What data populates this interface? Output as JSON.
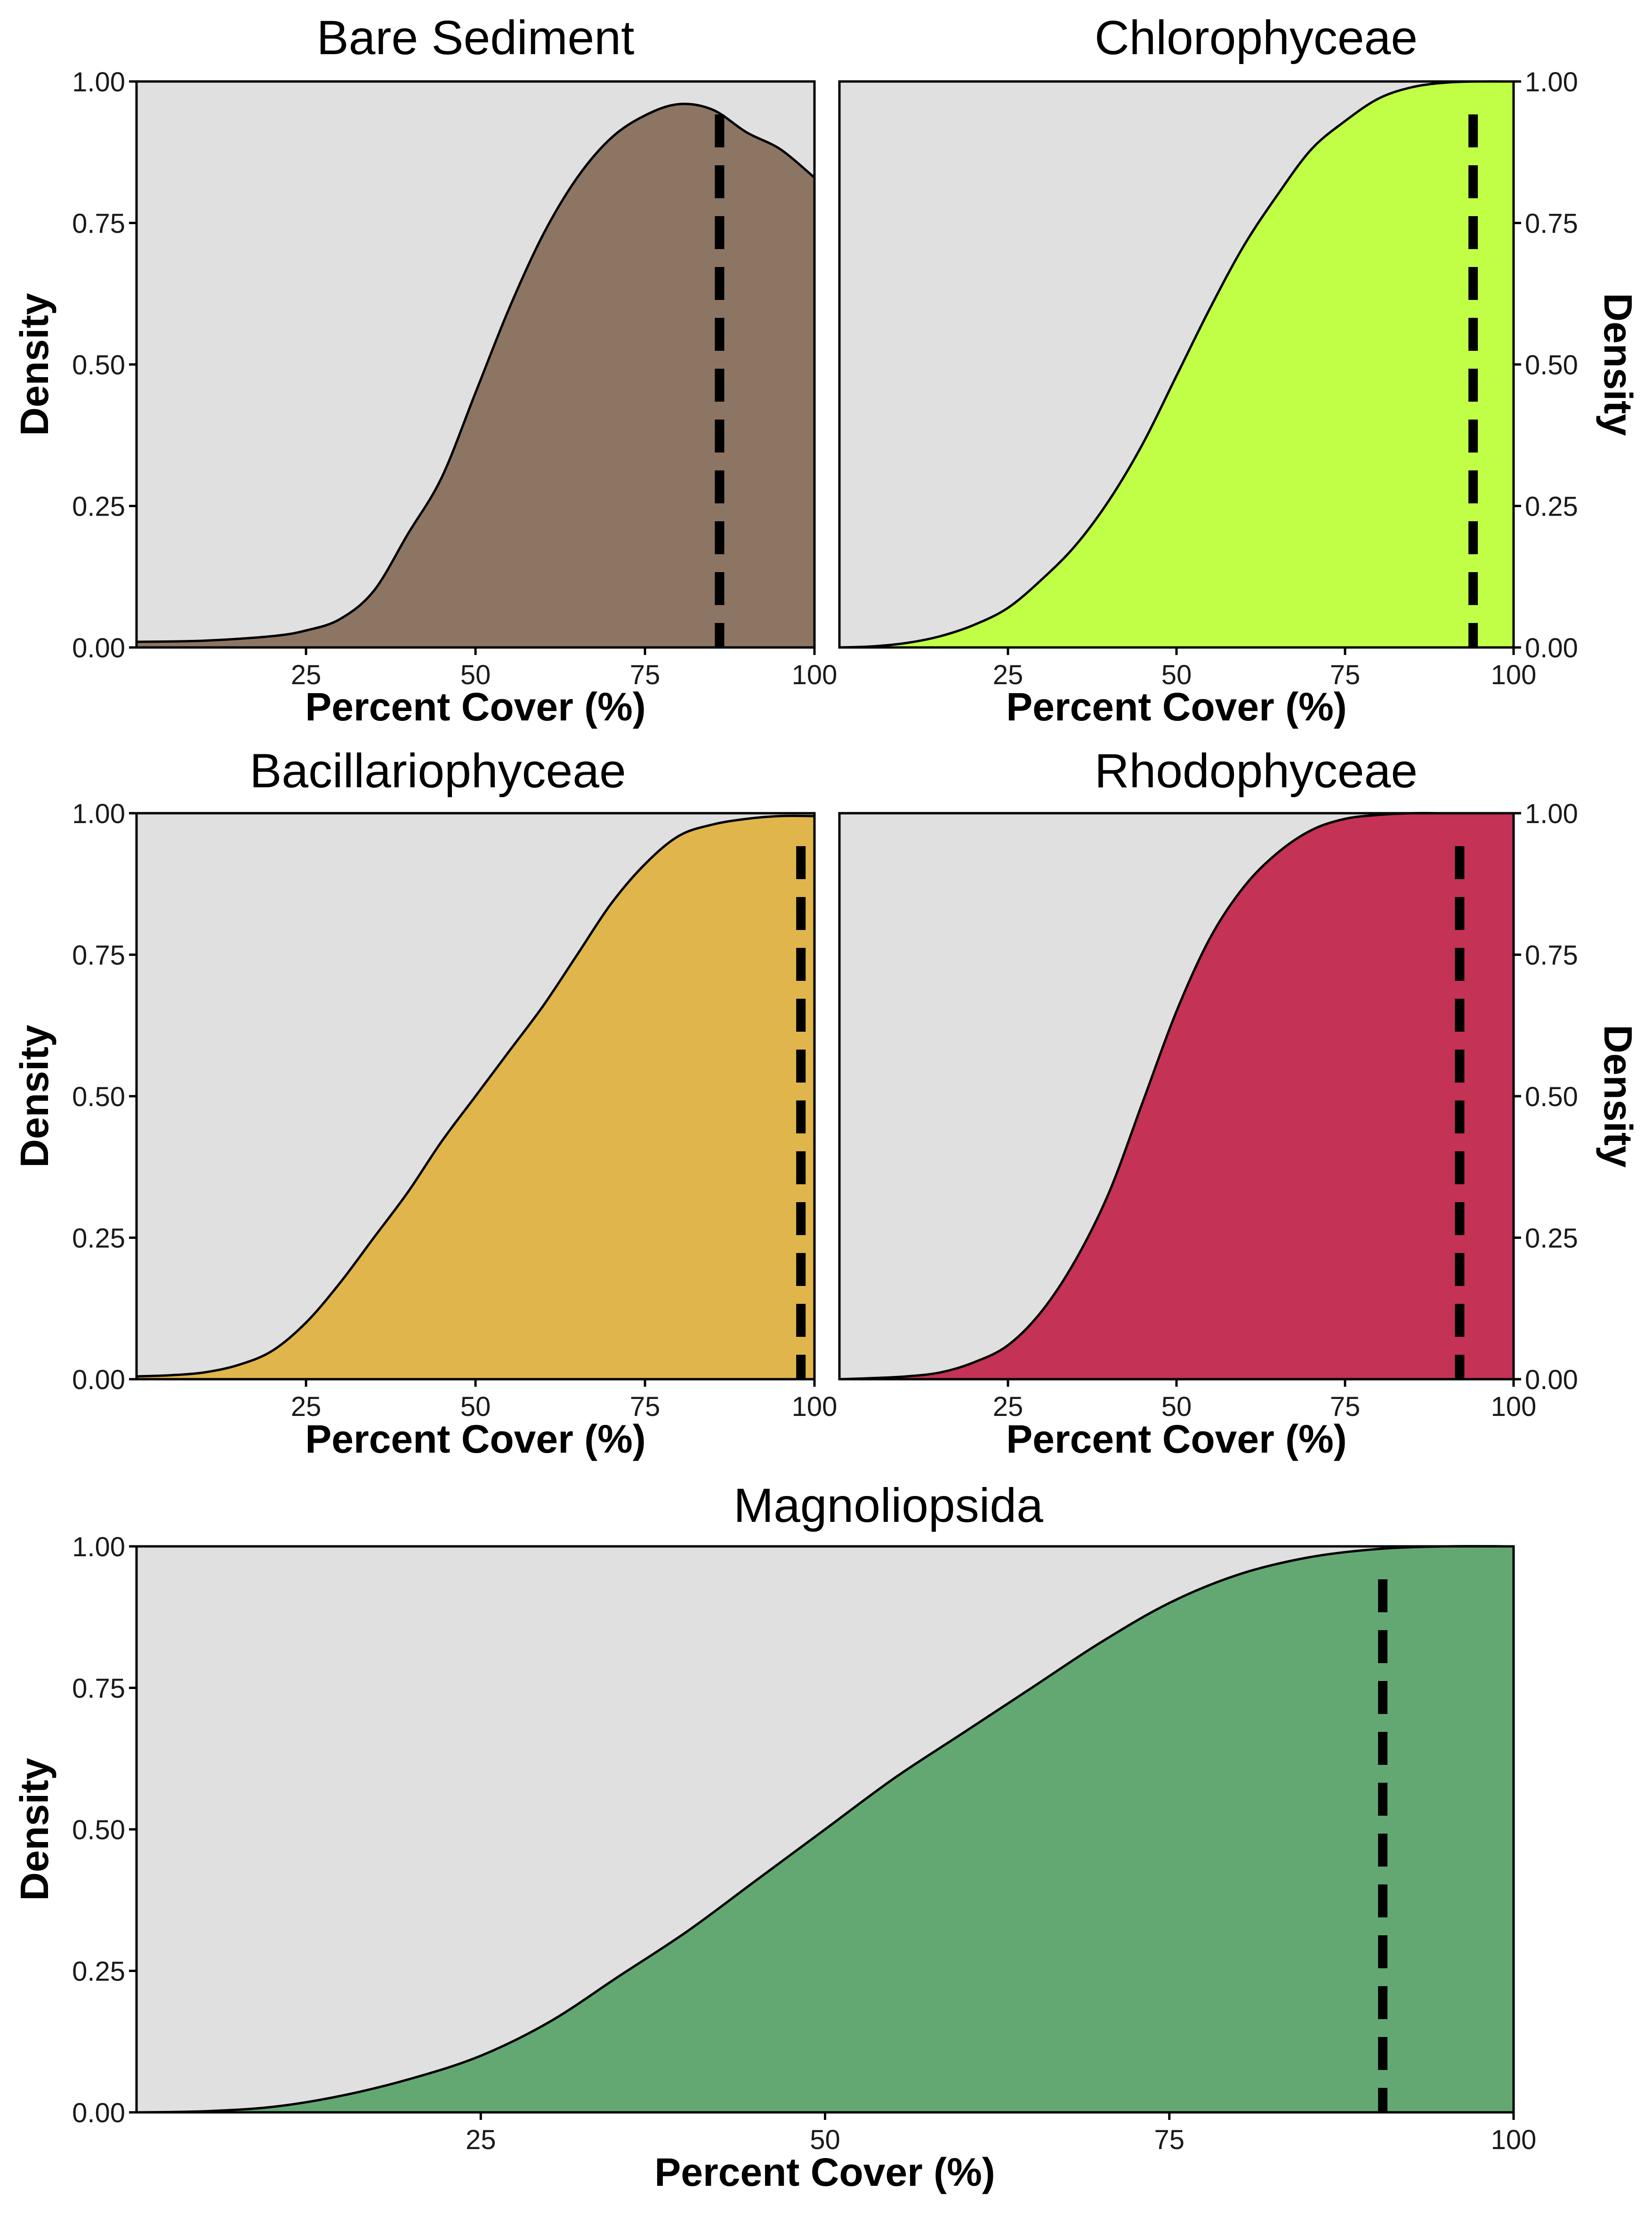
{
  "chart_data": [
    {
      "type": "area",
      "panel": "bare-sediment",
      "title": "Bare Sediment",
      "xlabel": "Percent Cover (%)",
      "ylabel": "Density",
      "ylabel_side": "left",
      "xlim": [
        0,
        100
      ],
      "ylim": [
        0,
        1
      ],
      "xticks": [
        "25",
        "50",
        "75",
        "100"
      ],
      "yticks": [
        "0.00",
        "0.25",
        "0.50",
        "0.75",
        "1.00"
      ],
      "fill_color": "#8c7563",
      "marker_x": 86,
      "x": [
        0,
        10,
        20,
        25,
        30,
        35,
        40,
        45,
        50,
        55,
        60,
        65,
        70,
        75,
        80,
        85,
        90,
        95,
        100
      ],
      "y": [
        0.01,
        0.012,
        0.02,
        0.03,
        0.05,
        0.1,
        0.2,
        0.3,
        0.45,
        0.6,
        0.73,
        0.83,
        0.9,
        0.94,
        0.96,
        0.95,
        0.91,
        0.88,
        0.83
      ]
    },
    {
      "type": "area",
      "panel": "chlorophyceae",
      "title": "Chlorophyceae",
      "xlabel": "Percent Cover (%)",
      "ylabel": "Density",
      "ylabel_side": "right",
      "xlim": [
        0,
        100
      ],
      "ylim": [
        0,
        1
      ],
      "xticks": [
        "25",
        "50",
        "75",
        "100"
      ],
      "yticks": [
        "0.00",
        "0.25",
        "0.50",
        "0.75",
        "1.00"
      ],
      "fill_color": "#c1ff47",
      "marker_x": 94,
      "x": [
        0,
        5,
        10,
        15,
        20,
        25,
        30,
        35,
        40,
        45,
        50,
        55,
        60,
        65,
        70,
        75,
        80,
        85,
        90,
        95,
        100
      ],
      "y": [
        0,
        0.002,
        0.008,
        0.02,
        0.04,
        0.07,
        0.12,
        0.18,
        0.26,
        0.36,
        0.48,
        0.6,
        0.71,
        0.8,
        0.88,
        0.93,
        0.97,
        0.99,
        0.998,
        1.0,
        1.0
      ]
    },
    {
      "type": "area",
      "panel": "bacillariophyceae",
      "title": "Bacillariophyceae",
      "xlabel": "Percent Cover (%)",
      "ylabel": "Density",
      "ylabel_side": "left",
      "xlim": [
        0,
        100
      ],
      "ylim": [
        0,
        1
      ],
      "xticks": [
        "25",
        "50",
        "75",
        "100"
      ],
      "yticks": [
        "0.00",
        "0.25",
        "0.50",
        "0.75",
        "1.00"
      ],
      "fill_color": "#e0b54b",
      "marker_x": 98,
      "x": [
        0,
        5,
        10,
        15,
        20,
        25,
        30,
        35,
        40,
        45,
        50,
        55,
        60,
        65,
        70,
        75,
        80,
        85,
        90,
        95,
        100
      ],
      "y": [
        0.005,
        0.007,
        0.012,
        0.025,
        0.05,
        0.1,
        0.17,
        0.25,
        0.33,
        0.42,
        0.5,
        0.58,
        0.66,
        0.75,
        0.84,
        0.91,
        0.96,
        0.98,
        0.99,
        0.995,
        0.995
      ]
    },
    {
      "type": "area",
      "panel": "rhodophyceae",
      "title": "Rhodophyceae",
      "xlabel": "Percent Cover (%)",
      "ylabel": "Density",
      "ylabel_side": "right",
      "xlim": [
        0,
        100
      ],
      "ylim": [
        0,
        1
      ],
      "xticks": [
        "25",
        "50",
        "75",
        "100"
      ],
      "yticks": [
        "0.00",
        "0.25",
        "0.50",
        "0.75",
        "1.00"
      ],
      "fill_color": "#c43256",
      "marker_x": 92,
      "x": [
        0,
        5,
        10,
        15,
        20,
        25,
        30,
        35,
        40,
        45,
        50,
        55,
        60,
        65,
        70,
        75,
        80,
        85,
        90,
        95,
        100
      ],
      "y": [
        0,
        0.002,
        0.005,
        0.012,
        0.03,
        0.06,
        0.12,
        0.21,
        0.33,
        0.49,
        0.65,
        0.78,
        0.87,
        0.93,
        0.97,
        0.99,
        0.997,
        1.0,
        1.0,
        1.0,
        1.0
      ]
    },
    {
      "type": "area",
      "panel": "magnoliopsida",
      "title": "Magnoliopsida",
      "xlabel": "Percent Cover (%)",
      "ylabel": "Density",
      "ylabel_side": "left",
      "xlim": [
        0,
        100
      ],
      "ylim": [
        0,
        1
      ],
      "xticks": [
        "25",
        "50",
        "75",
        "100"
      ],
      "yticks": [
        "0.00",
        "0.25",
        "0.50",
        "0.75",
        "1.00"
      ],
      "fill_color": "#63a873",
      "marker_x": 90.5,
      "x": [
        0,
        5,
        10,
        15,
        20,
        25,
        30,
        35,
        40,
        45,
        50,
        55,
        60,
        65,
        70,
        75,
        80,
        85,
        90,
        95,
        100
      ],
      "y": [
        0,
        0.002,
        0.01,
        0.03,
        0.06,
        0.1,
        0.16,
        0.24,
        0.32,
        0.41,
        0.5,
        0.59,
        0.67,
        0.75,
        0.83,
        0.9,
        0.95,
        0.98,
        0.995,
        1.0,
        1.0
      ]
    }
  ]
}
